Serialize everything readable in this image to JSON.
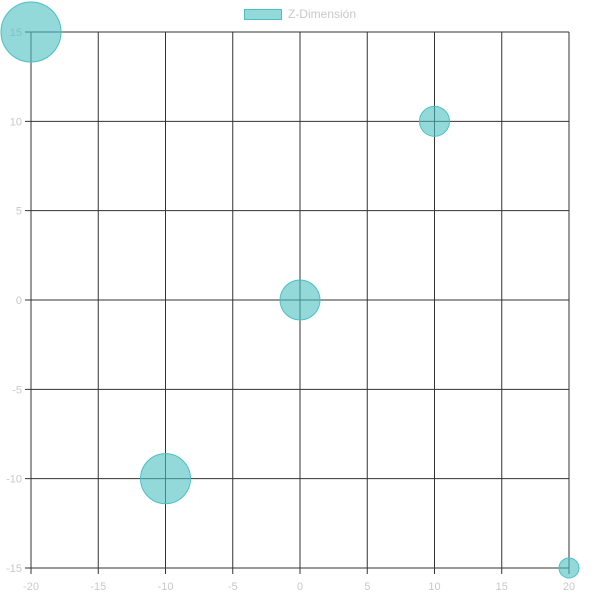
{
  "chart_data": {
    "type": "bubble",
    "title": "",
    "xlabel": "",
    "ylabel": "",
    "xlim": [
      -20,
      20
    ],
    "ylim": [
      -15,
      15
    ],
    "x_ticks": [
      -20,
      -15,
      -10,
      -5,
      0,
      5,
      10,
      15,
      20
    ],
    "y_ticks": [
      -15,
      -10,
      -5,
      0,
      5,
      10,
      15
    ],
    "grid": true,
    "legend_position": "top-center",
    "colors": {
      "fill": "rgba(75,192,192,0.6)",
      "border": "#4bc0c0",
      "grid": "#333333",
      "tick_text": "#c8c8c8"
    },
    "series": [
      {
        "name": "Z-Dimensión",
        "points": [
          {
            "x": -20,
            "y": 15,
            "r": 30
          },
          {
            "x": 10,
            "y": 10,
            "r": 15
          },
          {
            "x": 0,
            "y": 0,
            "r": 20
          },
          {
            "x": -10,
            "y": -10,
            "r": 25
          },
          {
            "x": 20,
            "y": -15,
            "r": 10
          }
        ]
      }
    ]
  }
}
